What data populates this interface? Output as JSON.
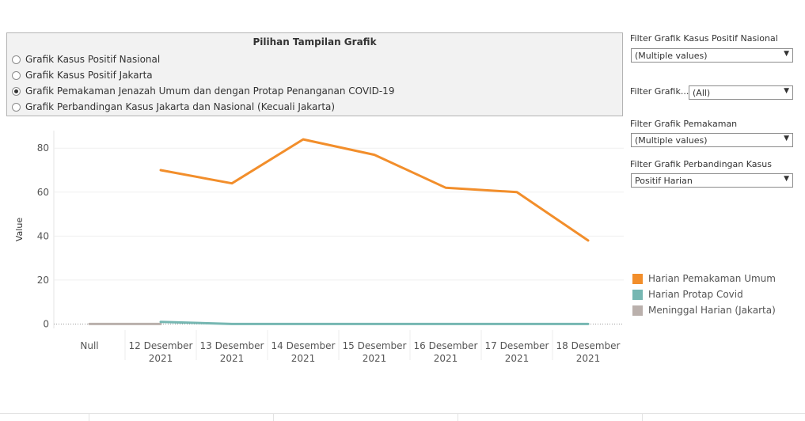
{
  "panel": {
    "title": "Pilihan Tampilan Grafik",
    "options": [
      {
        "label": "Grafik Kasus Positif Nasional",
        "selected": false
      },
      {
        "label": "Grafik Kasus Positif Jakarta",
        "selected": false
      },
      {
        "label": "Grafik Pemakaman Jenazah Umum dan dengan Protap Penanganan COVID-19",
        "selected": true
      },
      {
        "label": "Grafik Perbandingan Kasus Jakarta dan Nasional (Kecuali Jakarta)",
        "selected": false
      }
    ]
  },
  "filters": [
    {
      "label": "Filter Grafik Kasus Positif Nasional",
      "value": "(Multiple values)"
    },
    {
      "label": "Filter Grafik...",
      "value": "(All)"
    },
    {
      "label": "Filter Grafik Pemakaman",
      "value": "(Multiple values)"
    },
    {
      "label": "Filter Grafik Perbandingan Kasus",
      "value": "Positif Harian"
    }
  ],
  "icons": {
    "dropdown": "chevron-down-icon",
    "radio": "radio-icon"
  },
  "chart_data": {
    "type": "line",
    "ylabel": "Value",
    "ylim": [
      -2,
      88
    ],
    "yticks": [
      0,
      20,
      40,
      60,
      80
    ],
    "categories": [
      [
        "Null",
        ""
      ],
      [
        "12 Desember",
        "2021"
      ],
      [
        "13 Desember",
        "2021"
      ],
      [
        "14 Desember",
        "2021"
      ],
      [
        "15 Desember",
        "2021"
      ],
      [
        "16 Desember",
        "2021"
      ],
      [
        "17 Desember",
        "2021"
      ],
      [
        "18 Desember",
        "2021"
      ]
    ],
    "grid": "horizontal",
    "legend_position": "right",
    "series": [
      {
        "name": "Harian Pemakaman Umum",
        "color": "#f28e2b",
        "values": [
          null,
          70,
          64,
          84,
          77,
          62,
          60,
          38
        ]
      },
      {
        "name": "Harian Protap Covid",
        "color": "#76b7b2",
        "values": [
          null,
          1,
          0,
          0,
          0,
          0,
          0,
          0
        ]
      },
      {
        "name": "Meninggal Harian (Jakarta)",
        "color": "#bab0ac",
        "values": [
          0,
          0,
          null,
          null,
          null,
          null,
          null,
          null
        ]
      }
    ]
  }
}
